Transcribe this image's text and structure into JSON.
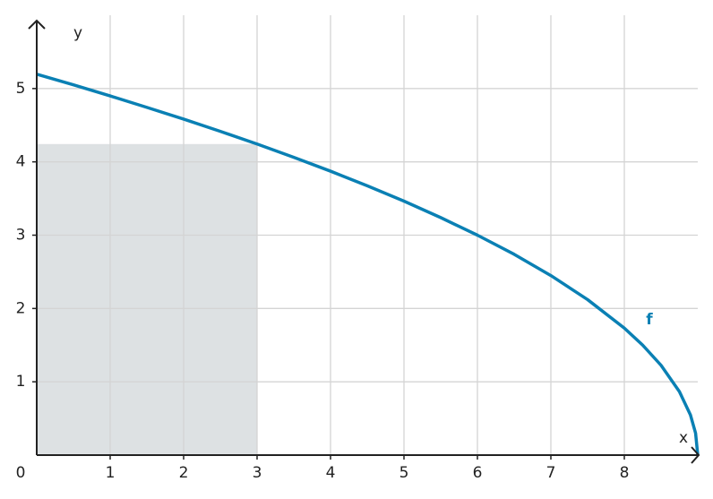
{
  "chart_data": {
    "type": "line",
    "x_label": "x",
    "y_label": "y",
    "series": [
      {
        "name": "f",
        "color": "#0a80b4",
        "x": [
          0,
          0.5,
          1,
          1.5,
          2,
          2.5,
          3,
          3.5,
          4,
          4.5,
          5,
          5.5,
          6,
          6.5,
          7,
          7.5,
          8,
          8.25,
          8.5,
          8.75,
          8.9,
          8.97,
          9
        ],
        "values": [
          5.196,
          5.05,
          4.899,
          4.743,
          4.583,
          4.416,
          4.243,
          4.062,
          3.873,
          3.674,
          3.464,
          3.24,
          3,
          2.739,
          2.449,
          2.121,
          1.732,
          1.5,
          1.225,
          0.866,
          0.548,
          0.3,
          0
        ]
      }
    ],
    "rectangle": {
      "x": [
        0,
        3
      ],
      "height": 4.243,
      "color": "#dde1e3"
    },
    "xlim": [
      0,
      9
    ],
    "ylim": [
      0,
      6
    ],
    "xticks": [
      0,
      1,
      2,
      3,
      4,
      5,
      6,
      7,
      8
    ],
    "yticks": [
      1,
      2,
      3,
      4,
      5
    ],
    "grid": true
  }
}
